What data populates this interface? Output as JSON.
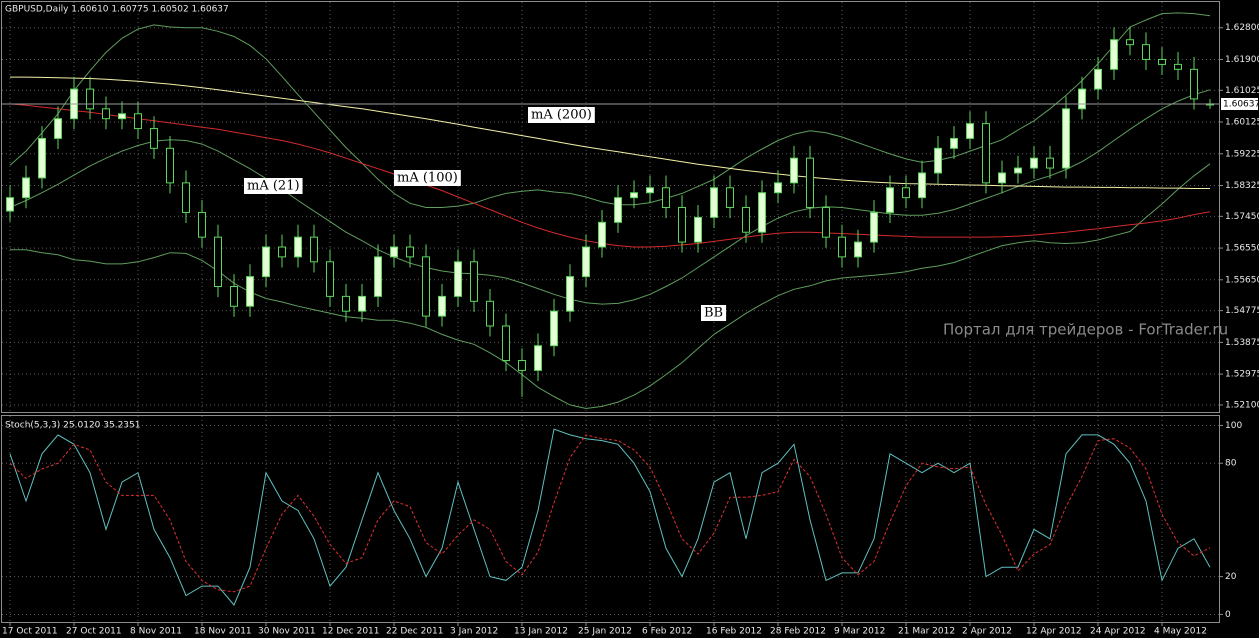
{
  "chart_data": [
    {
      "type": "candlestick",
      "title": "GBPUSD,Daily  1.60610 1.60775 1.60502 1.60637",
      "open": [
        1.576,
        1.5798,
        1.5854,
        1.5966,
        1.6022,
        1.6106,
        1.605,
        1.6022,
        1.6036,
        1.5994,
        1.5938,
        1.584,
        1.5756,
        1.5686,
        1.5546,
        1.549,
        1.5574,
        1.5658,
        1.563,
        1.5686,
        1.5616,
        1.5518,
        1.5476,
        1.5518,
        1.563,
        1.5658,
        1.563,
        1.5462,
        1.5518,
        1.5616,
        1.5504,
        1.5434,
        1.5336,
        1.5308,
        1.5378,
        1.5476,
        1.5574,
        1.5658,
        1.5728,
        1.5798,
        1.5812,
        1.5826,
        1.577,
        1.5672,
        1.5742,
        1.5826,
        1.577,
        1.57,
        1.5812,
        1.584,
        1.591,
        1.577,
        1.5686,
        1.563,
        1.5672,
        1.5756,
        1.5826,
        1.5798,
        1.5868,
        1.5938,
        1.5966,
        1.6008,
        1.584,
        1.5868,
        1.5882,
        1.591,
        1.5882,
        1.605,
        1.6106,
        1.6162,
        1.6246,
        1.6232,
        1.619,
        1.6176,
        1.6162,
        1.6061
      ],
      "high": [
        1.5833,
        1.5889,
        1.6001,
        1.6057,
        1.6141,
        1.6141,
        1.6085,
        1.6071,
        1.6071,
        1.6029,
        1.5973,
        1.5875,
        1.5791,
        1.5721,
        1.5581,
        1.5609,
        1.5693,
        1.5693,
        1.5721,
        1.5721,
        1.5651,
        1.5553,
        1.5553,
        1.5665,
        1.5693,
        1.5693,
        1.5665,
        1.5553,
        1.5651,
        1.5651,
        1.5539,
        1.5469,
        1.5371,
        1.5413,
        1.5511,
        1.5609,
        1.5693,
        1.5763,
        1.5833,
        1.5847,
        1.5861,
        1.5861,
        1.5805,
        1.5777,
        1.5861,
        1.5861,
        1.5805,
        1.5847,
        1.5875,
        1.5945,
        1.5945,
        1.5805,
        1.5721,
        1.5707,
        1.5791,
        1.5861,
        1.5861,
        1.5903,
        1.5973,
        1.6001,
        1.6043,
        1.6043,
        1.5903,
        1.5917,
        1.5945,
        1.5945,
        1.6085,
        1.6141,
        1.6197,
        1.6281,
        1.6281,
        1.6267,
        1.6225,
        1.6211,
        1.6197,
        1.6078
      ],
      "low": [
        1.573,
        1.5768,
        1.5824,
        1.5936,
        1.5992,
        1.602,
        1.5992,
        1.5992,
        1.5964,
        1.5908,
        1.581,
        1.5726,
        1.5656,
        1.5516,
        1.546,
        1.546,
        1.5544,
        1.56,
        1.56,
        1.5586,
        1.5488,
        1.5446,
        1.5446,
        1.5488,
        1.56,
        1.56,
        1.5432,
        1.5432,
        1.5488,
        1.5474,
        1.5404,
        1.5306,
        1.5233,
        1.5278,
        1.5348,
        1.5446,
        1.5544,
        1.5628,
        1.5698,
        1.5768,
        1.5782,
        1.574,
        1.5642,
        1.5642,
        1.5712,
        1.574,
        1.567,
        1.567,
        1.5782,
        1.581,
        1.574,
        1.5656,
        1.56,
        1.56,
        1.5642,
        1.5726,
        1.5768,
        1.5768,
        1.5838,
        1.5908,
        1.5936,
        1.581,
        1.581,
        1.5838,
        1.5852,
        1.5852,
        1.5852,
        1.602,
        1.6076,
        1.6132,
        1.6202,
        1.616,
        1.6146,
        1.6132,
        1.6048,
        1.605
      ],
      "close": [
        1.5798,
        1.5854,
        1.5966,
        1.6022,
        1.6106,
        1.605,
        1.6022,
        1.6036,
        1.5994,
        1.5938,
        1.584,
        1.5756,
        1.5686,
        1.5546,
        1.549,
        1.5574,
        1.5658,
        1.563,
        1.5686,
        1.5616,
        1.5518,
        1.5476,
        1.5518,
        1.563,
        1.5658,
        1.563,
        1.5462,
        1.5518,
        1.5616,
        1.5504,
        1.5434,
        1.5336,
        1.5308,
        1.5378,
        1.5476,
        1.5574,
        1.5658,
        1.5728,
        1.5798,
        1.5812,
        1.5826,
        1.577,
        1.5672,
        1.5742,
        1.5826,
        1.577,
        1.57,
        1.5812,
        1.584,
        1.591,
        1.577,
        1.5686,
        1.563,
        1.5672,
        1.5756,
        1.5826,
        1.5798,
        1.5868,
        1.5938,
        1.5966,
        1.6008,
        1.584,
        1.5868,
        1.5882,
        1.591,
        1.5882,
        1.605,
        1.6106,
        1.6162,
        1.6246,
        1.6232,
        1.619,
        1.6176,
        1.6162,
        1.6078,
        1.6064
      ],
      "up_color": "#e6ffd9",
      "down_color": "#000000",
      "wick_color": "#5cd65c",
      "lines": [
        {
          "color": "#5e9e5e",
          "values": [
            1.577,
            1.579,
            1.5812,
            1.5836,
            1.5862,
            1.5888,
            1.591,
            1.593,
            1.5946,
            1.5958,
            1.5962,
            1.596,
            1.595,
            1.593,
            1.5905,
            1.588,
            1.5852,
            1.5822,
            1.579,
            1.576,
            1.573,
            1.57,
            1.5676,
            1.565,
            1.563,
            1.5612,
            1.56,
            1.559,
            1.5584,
            1.5582,
            1.5578,
            1.557,
            1.5556,
            1.554,
            1.5524,
            1.551,
            1.55,
            1.5496,
            1.5498,
            1.5508,
            1.5524,
            1.5546,
            1.557,
            1.56,
            1.563,
            1.566,
            1.569,
            1.5716,
            1.574,
            1.5758,
            1.5768,
            1.5772,
            1.577,
            1.5764,
            1.5758,
            1.5752,
            1.5748,
            1.5748,
            1.5754,
            1.5764,
            1.578,
            1.5796,
            1.5812,
            1.583,
            1.5846,
            1.586,
            1.5878,
            1.59,
            1.5928,
            1.596,
            1.5992,
            1.6022,
            1.605,
            1.6072,
            1.609,
            1.6104
          ]
        },
        {
          "color": "#5e9e5e",
          "values": [
            1.589,
            1.593,
            1.5982,
            1.6036,
            1.6102,
            1.6158,
            1.621,
            1.625,
            1.6276,
            1.6288,
            1.6282,
            1.628,
            1.628,
            1.627,
            1.6255,
            1.623,
            1.6192,
            1.6142,
            1.609,
            1.604,
            1.599,
            1.594,
            1.5896,
            1.585,
            1.581,
            1.5782,
            1.577,
            1.577,
            1.5774,
            1.5782,
            1.5798,
            1.581,
            1.5816,
            1.582,
            1.5814,
            1.581,
            1.58,
            1.5786,
            1.5778,
            1.5778,
            1.5784,
            1.5796,
            1.581,
            1.583,
            1.585,
            1.588,
            1.591,
            1.5936,
            1.596,
            1.5978,
            1.5988,
            1.5982,
            1.597,
            1.5954,
            1.5938,
            1.5922,
            1.5908,
            1.5898,
            1.5904,
            1.5914,
            1.593,
            1.5946,
            1.5962,
            1.599,
            1.6016,
            1.605,
            1.6088,
            1.613,
            1.6178,
            1.623,
            1.6282,
            1.6302,
            1.632,
            1.6322,
            1.632,
            1.6314
          ]
        },
        {
          "color": "#5e9e5e",
          "values": [
            1.565,
            1.565,
            1.5642,
            1.5636,
            1.5622,
            1.5618,
            1.561,
            1.561,
            1.5616,
            1.5628,
            1.5642,
            1.564,
            1.562,
            1.559,
            1.5555,
            1.553,
            1.5512,
            1.5502,
            1.549,
            1.548,
            1.547,
            1.546,
            1.5456,
            1.545,
            1.545,
            1.5442,
            1.543,
            1.541,
            1.5394,
            1.5382,
            1.5358,
            1.533,
            1.5296,
            1.526,
            1.5234,
            1.521,
            1.52,
            1.5206,
            1.5218,
            1.5238,
            1.5264,
            1.5296,
            1.533,
            1.537,
            1.541,
            1.544,
            1.547,
            1.5496,
            1.552,
            1.5538,
            1.5548,
            1.5562,
            1.557,
            1.5574,
            1.5578,
            1.5582,
            1.5588,
            1.5598,
            1.5604,
            1.5614,
            1.563,
            1.5646,
            1.5662,
            1.567,
            1.5676,
            1.567,
            1.5668,
            1.567,
            1.5678,
            1.569,
            1.5702,
            1.5742,
            1.578,
            1.5822,
            1.586,
            1.5894
          ]
        },
        {
          "color": "#d42a2a",
          "values": [
            1.6064,
            1.606,
            1.6055,
            1.605,
            1.6045,
            1.604,
            1.6034,
            1.6028,
            1.6022,
            1.6016,
            1.601,
            1.6004,
            1.5998,
            1.5992,
            1.5984,
            1.5976,
            1.5968,
            1.596,
            1.595,
            1.5938,
            1.5925,
            1.591,
            1.5895,
            1.588,
            1.5865,
            1.585,
            1.5834,
            1.5818,
            1.58,
            1.5782,
            1.5764,
            1.5746,
            1.5728,
            1.5712,
            1.5698,
            1.5686,
            1.5676,
            1.5668,
            1.5662,
            1.5658,
            1.5658,
            1.566,
            1.5664,
            1.5668,
            1.5674,
            1.568,
            1.5686,
            1.5692,
            1.5697,
            1.57,
            1.57,
            1.5698,
            1.5696,
            1.5694,
            1.5692,
            1.569,
            1.5688,
            1.5686,
            1.5686,
            1.5686,
            1.5686,
            1.5686,
            1.5687,
            1.5689,
            1.5692,
            1.5696,
            1.57,
            1.5705,
            1.571,
            1.5716,
            1.5721,
            1.5726,
            1.5732,
            1.574,
            1.575,
            1.5758
          ]
        },
        {
          "color": "#f2f0a8",
          "values": [
            1.614,
            1.614,
            1.6139,
            1.6138,
            1.6137,
            1.6136,
            1.6134,
            1.6131,
            1.6128,
            1.6124,
            1.612,
            1.6115,
            1.611,
            1.6104,
            1.6098,
            1.6092,
            1.6086,
            1.608,
            1.6074,
            1.6068,
            1.6062,
            1.6056,
            1.605,
            1.6043,
            1.6036,
            1.6029,
            1.6022,
            1.6014,
            1.6006,
            1.5998,
            1.599,
            1.5982,
            1.5974,
            1.5966,
            1.5958,
            1.595,
            1.5942,
            1.5935,
            1.5928,
            1.5921,
            1.5914,
            1.5907,
            1.59,
            1.5893,
            1.5887,
            1.5881,
            1.5875,
            1.587,
            1.5865,
            1.586,
            1.5856,
            1.5852,
            1.5848,
            1.5845,
            1.5842,
            1.584,
            1.5838,
            1.5837,
            1.5836,
            1.5835,
            1.5834,
            1.5833,
            1.5832,
            1.5831,
            1.583,
            1.5829,
            1.5828,
            1.5828,
            1.5827,
            1.5827,
            1.5826,
            1.5826,
            1.5825,
            1.5825,
            1.5824,
            1.5824
          ]
        }
      ],
      "ylim": [
        1.519,
        1.6353
      ],
      "yticks": [
        {
          "value": 1.628,
          "label": "1.62800"
        },
        {
          "value": 1.619,
          "label": "1.61900"
        },
        {
          "value": 1.61025,
          "label": "1.61025"
        },
        {
          "value": 1.60125,
          "label": "1.60125"
        },
        {
          "value": 1.59225,
          "label": "1.59225"
        },
        {
          "value": 1.58325,
          "label": "1.58325"
        },
        {
          "value": 1.5745,
          "label": "1.57450"
        },
        {
          "value": 1.5655,
          "label": "1.56550"
        },
        {
          "value": 1.5565,
          "label": "1.55650"
        },
        {
          "value": 1.54775,
          "label": "1.54775"
        },
        {
          "value": 1.53875,
          "label": "1.53875"
        },
        {
          "value": 1.52975,
          "label": "1.52975"
        },
        {
          "value": 1.521,
          "label": "1.52100"
        }
      ],
      "last_price": {
        "value": 1.60637,
        "label": "1.60637"
      },
      "grid": true,
      "annotations": [
        "mA (200)",
        "mA (100)",
        "mA (21)",
        "BB"
      ],
      "watermark": "Портал для трейдеров - ForTrader.ru"
    },
    {
      "type": "line",
      "title": "Stoch(5,3,3) 25.0120 35.2351",
      "categories": [
        "17 Oct 2011",
        null,
        null,
        null,
        "27 Oct 2011",
        null,
        null,
        null,
        "8 Nov 2011",
        null,
        null,
        null,
        "18 Nov 2011",
        null,
        null,
        null,
        "30 Nov 2011",
        null,
        null,
        null,
        "12 Dec 2011",
        null,
        null,
        null,
        "22 Dec 2011",
        null,
        null,
        null,
        "3 Jan 2012",
        null,
        null,
        null,
        "13 Jan 2012",
        null,
        null,
        null,
        "25 Jan 2012",
        null,
        null,
        null,
        "6 Feb 2012",
        null,
        null,
        null,
        "16 Feb 2012",
        null,
        null,
        null,
        "28 Feb 2012",
        null,
        null,
        null,
        "9 Mar 2012",
        null,
        null,
        null,
        "21 Mar 2012",
        null,
        null,
        null,
        "2 Apr 2012",
        null,
        null,
        null,
        "12 Apr 2012",
        null,
        null,
        null,
        "24 Apr 2012",
        null,
        null,
        null,
        "4 May 2012",
        null,
        null,
        null
      ],
      "series": [
        {
          "color": "#5fc0c0",
          "values": [
            85,
            60,
            85,
            95,
            90,
            75,
            45,
            70,
            75,
            45,
            30,
            10,
            15,
            15,
            5,
            25,
            75,
            60,
            55,
            40,
            15,
            25,
            50,
            75,
            55,
            40,
            20,
            35,
            70,
            45,
            20,
            18,
            25,
            55,
            98,
            95,
            93,
            92,
            90,
            80,
            65,
            35,
            20,
            40,
            70,
            75,
            40,
            75,
            80,
            90,
            50,
            18,
            22,
            22,
            40,
            85,
            80,
            75,
            80,
            75,
            80,
            20,
            25,
            25,
            45,
            40,
            85,
            95,
            95,
            90,
            80,
            60,
            18,
            35,
            40,
            25.012
          ]
        },
        {
          "color": "#e03030",
          "dash": true,
          "values": [
            80,
            72,
            77,
            80,
            90,
            87,
            70,
            63,
            63,
            63,
            50,
            28,
            18,
            13,
            12,
            15,
            35,
            53,
            63,
            52,
            37,
            27,
            30,
            50,
            60,
            57,
            38,
            32,
            42,
            50,
            45,
            28,
            21,
            33,
            59,
            83,
            95,
            93,
            92,
            87,
            78,
            60,
            40,
            32,
            43,
            62,
            62,
            63,
            65,
            82,
            73,
            53,
            30,
            21,
            28,
            49,
            68,
            80,
            78,
            77,
            78,
            58,
            42,
            23,
            32,
            37,
            57,
            73,
            92,
            93,
            88,
            77,
            53,
            38,
            31,
            35.2351
          ]
        }
      ],
      "ylim": [
        -4,
        105
      ],
      "yticks": [
        100,
        80,
        20,
        0
      ],
      "grid": true
    }
  ]
}
